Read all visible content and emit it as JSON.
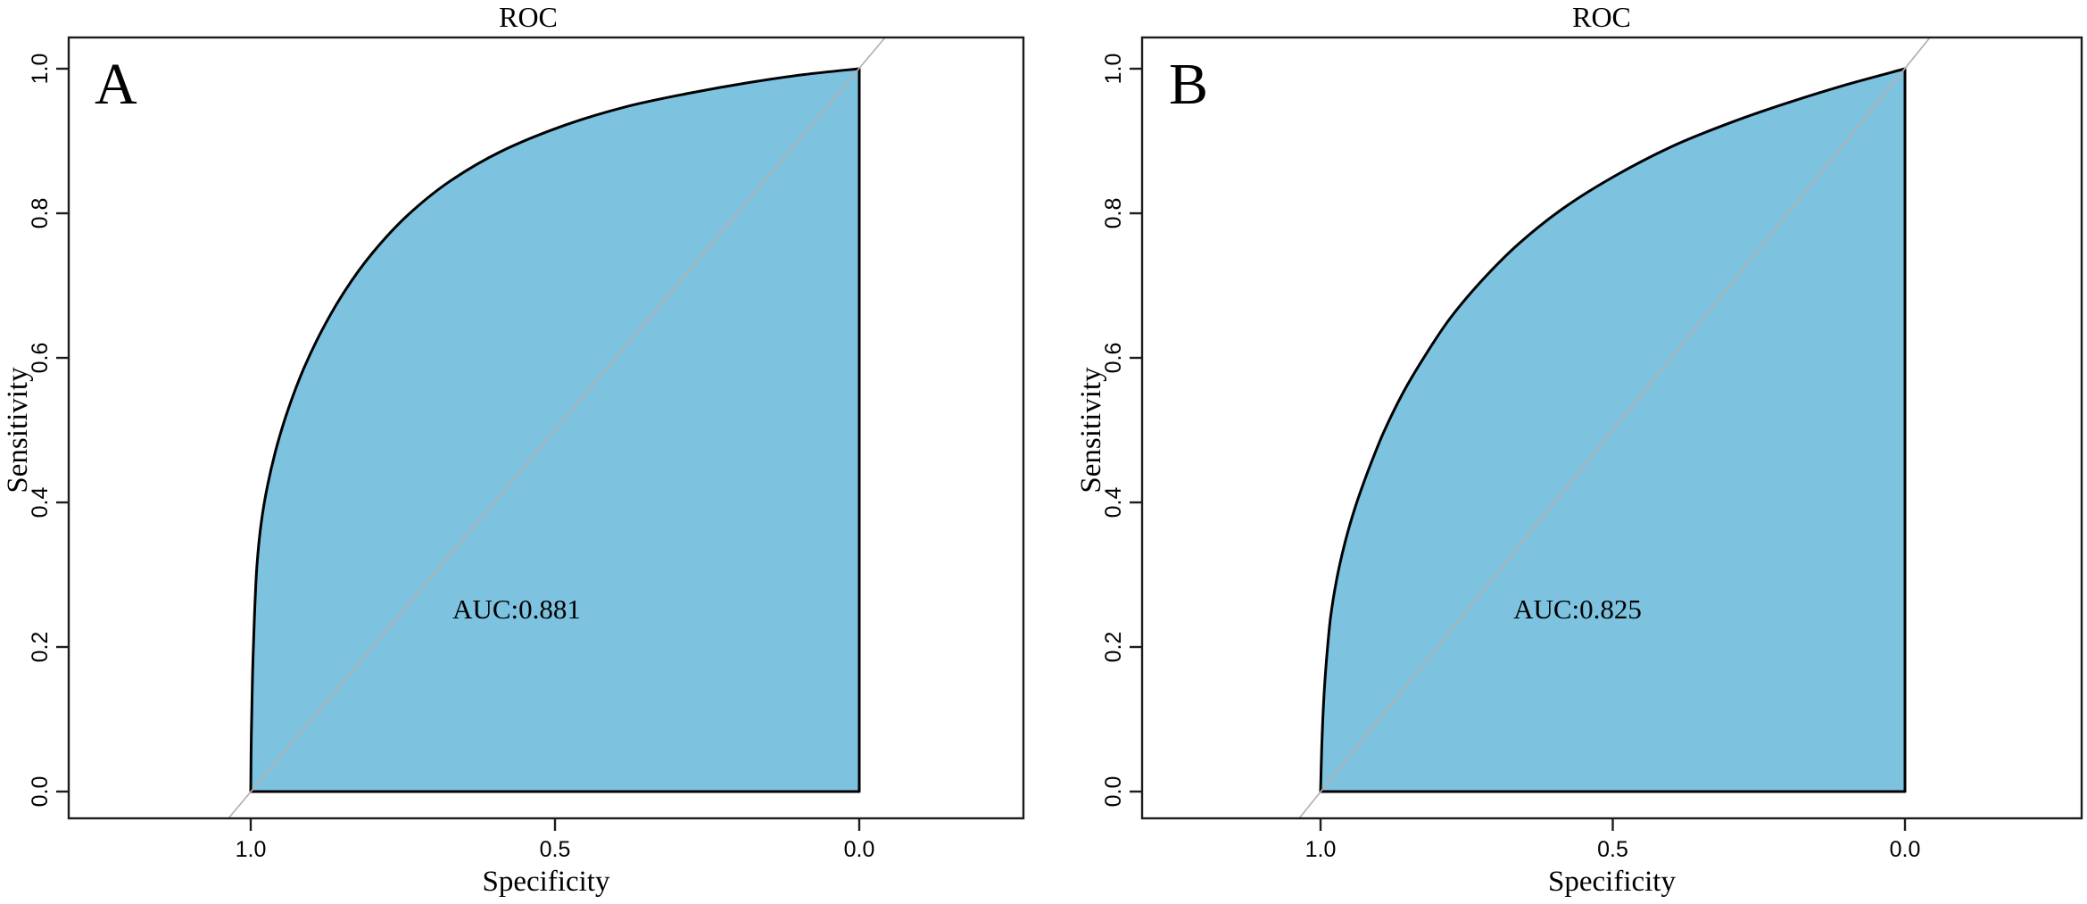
{
  "figure": {
    "description": "Two-panel ROC curve figure",
    "background": "#ffffff",
    "colors": {
      "roc_fill": "#7dc3e0",
      "roc_stroke": "#000000",
      "diagonal_line": "#b8b0ab",
      "axis": "#1c1c1c",
      "text": "#000000"
    }
  },
  "chart_data": [
    {
      "type": "area",
      "panel_label": "A",
      "title": "ROC",
      "xlabel": "Specificity",
      "ylabel": "Sensitivity",
      "x_axis": {
        "label": "Specificity",
        "ticks": [
          "1.0",
          "0.5",
          "0.0"
        ],
        "range": [
          1.0,
          0.0
        ],
        "reversed": true
      },
      "y_axis": {
        "label": "Sensitivity",
        "ticks": [
          "0.0",
          "0.2",
          "0.4",
          "0.6",
          "0.8",
          "1.0"
        ],
        "range": [
          0.0,
          1.0
        ]
      },
      "auc": 0.881,
      "auc_annotation": "AUC:0.881",
      "diagonal_reference": true,
      "series": [
        {
          "name": "ROC curve",
          "points_specificity_sensitivity": [
            [
              1.0,
              0.0
            ],
            [
              0.999,
              0.08
            ],
            [
              0.997,
              0.16
            ],
            [
              0.994,
              0.24
            ],
            [
              0.99,
              0.31
            ],
            [
              0.983,
              0.37
            ],
            [
              0.972,
              0.425
            ],
            [
              0.957,
              0.478
            ],
            [
              0.938,
              0.53
            ],
            [
              0.913,
              0.585
            ],
            [
              0.883,
              0.638
            ],
            [
              0.845,
              0.693
            ],
            [
              0.8,
              0.745
            ],
            [
              0.745,
              0.795
            ],
            [
              0.675,
              0.843
            ],
            [
              0.59,
              0.885
            ],
            [
              0.49,
              0.92
            ],
            [
              0.385,
              0.947
            ],
            [
              0.28,
              0.966
            ],
            [
              0.18,
              0.981
            ],
            [
              0.09,
              0.992
            ],
            [
              0.0,
              1.0
            ]
          ]
        }
      ]
    },
    {
      "type": "area",
      "panel_label": "B",
      "title": "ROC",
      "xlabel": "Specificity",
      "ylabel": "Sensitivity",
      "x_axis": {
        "label": "Specificity",
        "ticks": [
          "1.0",
          "0.5",
          "0.0"
        ],
        "range": [
          1.0,
          0.0
        ],
        "reversed": true
      },
      "y_axis": {
        "label": "Sensitivity",
        "ticks": [
          "0.0",
          "0.2",
          "0.4",
          "0.6",
          "0.8",
          "1.0"
        ],
        "range": [
          0.0,
          1.0
        ]
      },
      "auc": 0.825,
      "auc_annotation": "AUC:0.825",
      "diagonal_reference": true,
      "series": [
        {
          "name": "ROC curve",
          "points_specificity_sensitivity": [
            [
              1.0,
              0.0
            ],
            [
              0.998,
              0.06
            ],
            [
              0.995,
              0.12
            ],
            [
              0.99,
              0.18
            ],
            [
              0.983,
              0.24
            ],
            [
              0.972,
              0.295
            ],
            [
              0.958,
              0.345
            ],
            [
              0.94,
              0.395
            ],
            [
              0.918,
              0.445
            ],
            [
              0.892,
              0.497
            ],
            [
              0.86,
              0.55
            ],
            [
              0.822,
              0.602
            ],
            [
              0.778,
              0.655
            ],
            [
              0.725,
              0.706
            ],
            [
              0.662,
              0.757
            ],
            [
              0.588,
              0.805
            ],
            [
              0.5,
              0.85
            ],
            [
              0.4,
              0.892
            ],
            [
              0.3,
              0.925
            ],
            [
              0.2,
              0.953
            ],
            [
              0.1,
              0.978
            ],
            [
              0.0,
              1.0
            ]
          ]
        }
      ]
    }
  ]
}
